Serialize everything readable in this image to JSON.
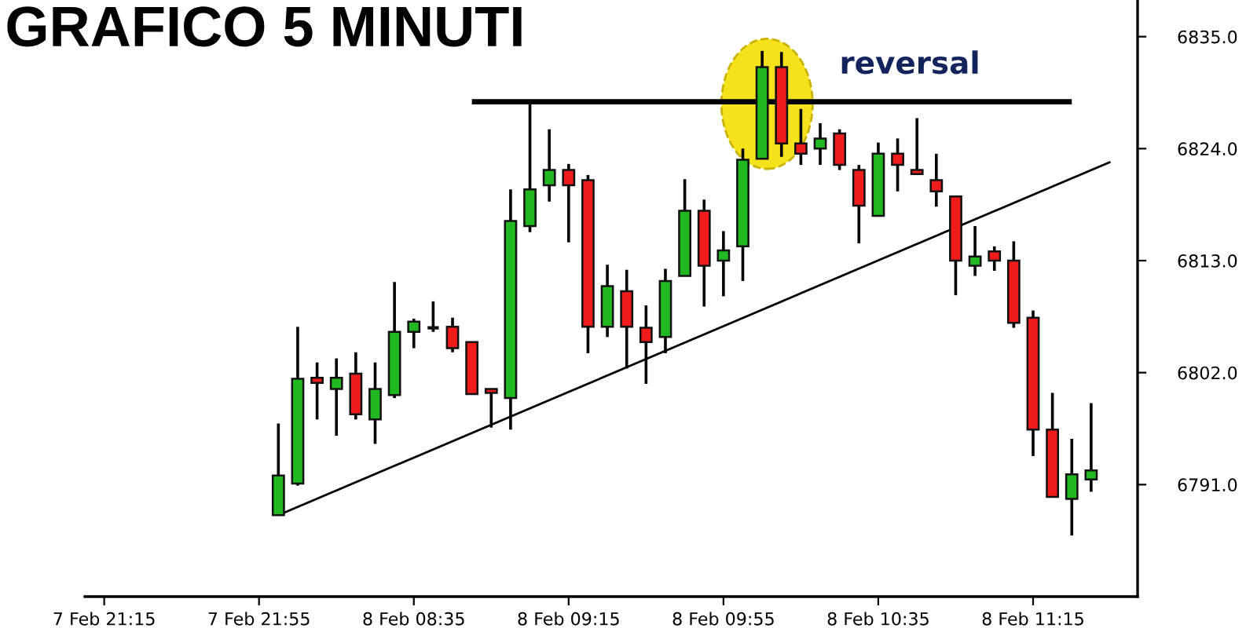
{
  "chart_data": {
    "type": "candlestick",
    "title": "GRAFICO 5 MINUTI",
    "categories": [
      "7 Feb 21:15",
      null,
      null,
      null,
      null,
      null,
      null,
      null,
      "7 Feb 21:55",
      null,
      null,
      null,
      null,
      null,
      null,
      null,
      "8 Feb 08:35",
      null,
      null,
      null,
      null,
      null,
      null,
      null,
      "8 Feb 09:15",
      null,
      null,
      null,
      null,
      null,
      null,
      null,
      "8 Feb 09:55",
      null,
      null,
      null,
      null,
      null,
      null,
      null,
      "8 Feb 10:35",
      null,
      null,
      null,
      null,
      null,
      null,
      null,
      "8 Feb 11:15",
      null,
      null,
      null,
      null
    ],
    "ylim": [
      6780,
      6838.6
    ],
    "yticks": [
      {
        "value": 6791,
        "label": "6791.0"
      },
      {
        "value": 6802,
        "label": "6802.0"
      },
      {
        "value": 6813,
        "label": "6813.0"
      },
      {
        "value": 6824,
        "label": "6824.0"
      },
      {
        "value": 6835,
        "label": "6835.0"
      }
    ],
    "series": [
      {
        "ohlc": [
          null,
          null,
          null,
          null,
          null,
          null,
          null,
          null,
          null,
          [
            6788.0,
            6797.0,
            6788.0,
            6791.9
          ],
          [
            6791.1,
            6806.5,
            6790.9,
            6801.4
          ],
          [
            6801.5,
            6803.0,
            6797.4,
            6801.0
          ],
          [
            6800.4,
            6803.4,
            6795.8,
            6801.5
          ],
          [
            6801.9,
            6804.0,
            6797.4,
            6797.9
          ],
          [
            6797.4,
            6803.0,
            6795.0,
            6800.4
          ],
          [
            6799.8,
            6810.9,
            6799.5,
            6806.0
          ],
          [
            6806.0,
            6807.3,
            6804.4,
            6807.0
          ],
          [
            6806.4,
            6809.0,
            6806.0,
            6806.4
          ],
          [
            6806.5,
            6807.4,
            6804.0,
            6804.4
          ],
          [
            6805.0,
            6805.0,
            6799.9,
            6799.9
          ],
          [
            6800.4,
            6800.4,
            6796.6,
            6800.0
          ],
          [
            6799.5,
            6820.0,
            6796.4,
            6816.9
          ],
          [
            6816.4,
            6828.6,
            6815.8,
            6820.0
          ],
          [
            6820.4,
            6825.9,
            6818.8,
            6821.9
          ],
          [
            6821.9,
            6822.5,
            6814.8,
            6820.4
          ],
          [
            6820.9,
            6821.4,
            6803.9,
            6806.5
          ],
          [
            6806.5,
            6812.6,
            6805.5,
            6810.5
          ],
          [
            6810.0,
            6812.1,
            6802.4,
            6806.5
          ],
          [
            6806.4,
            6808.6,
            6800.9,
            6805.0
          ],
          [
            6805.5,
            6812.2,
            6803.9,
            6811.0
          ],
          [
            6811.5,
            6821.0,
            6811.5,
            6817.9
          ],
          [
            6817.9,
            6819.0,
            6808.5,
            6812.5
          ],
          [
            6813.0,
            6815.9,
            6809.5,
            6814.0
          ],
          [
            6814.4,
            6824.0,
            6811.0,
            6822.9
          ],
          [
            6823.0,
            6833.6,
            6823.0,
            6832.0
          ],
          [
            6832.0,
            6833.5,
            6823.2,
            6824.5
          ],
          [
            6824.5,
            6827.9,
            6822.4,
            6823.5
          ],
          [
            6824.0,
            6826.5,
            6822.4,
            6825.0
          ],
          [
            6825.5,
            6825.9,
            6821.9,
            6822.4
          ],
          [
            6821.9,
            6822.4,
            6814.7,
            6818.4
          ],
          [
            6817.4,
            6824.6,
            6817.4,
            6823.5
          ],
          [
            6823.5,
            6825.0,
            6819.8,
            6822.4
          ],
          [
            6821.9,
            6827.0,
            6821.5,
            6821.5
          ],
          [
            6820.9,
            6823.5,
            6818.3,
            6819.8
          ],
          [
            6819.3,
            6819.3,
            6809.6,
            6813.0
          ],
          [
            6812.5,
            6816.4,
            6811.5,
            6813.4
          ],
          [
            6813.9,
            6814.4,
            6812.0,
            6813.0
          ],
          [
            6813.0,
            6814.9,
            6806.4,
            6806.9
          ],
          [
            6807.4,
            6808.1,
            6793.8,
            6796.4
          ],
          [
            6796.4,
            6800.0,
            6789.8,
            6789.8
          ],
          [
            6789.6,
            6795.5,
            6786.0,
            6792.0
          ],
          [
            6791.5,
            6799.0,
            6790.3,
            6792.4
          ],
          null
        ],
        "colors": [
          null,
          null,
          null,
          null,
          null,
          null,
          null,
          null,
          null,
          "#22b822",
          "#22b822",
          "#f01c1c",
          "#22b822",
          "#f01c1c",
          "#22b822",
          "#22b822",
          "#22b822",
          "#111111",
          "#f01c1c",
          "#f01c1c",
          "#f01c1c",
          "#22b822",
          "#22b822",
          "#22b822",
          "#f01c1c",
          "#f01c1c",
          "#22b822",
          "#f01c1c",
          "#f01c1c",
          "#22b822",
          "#22b822",
          "#f01c1c",
          "#22b822",
          "#22b822",
          "#22b822",
          "#f01c1c",
          "#f01c1c",
          "#22b822",
          "#f01c1c",
          "#f01c1c",
          "#22b822",
          "#f01c1c",
          "#f01c1c",
          "#f01c1c",
          "#f01c1c",
          "#22b822",
          "#f01c1c",
          "#f01c1c",
          "#f01c1c",
          "#f01c1c",
          "#22b822",
          "#22b822",
          null
        ]
      },
      {
        "type": "line",
        "color": "#000000",
        "values": [
          null,
          null,
          null,
          null,
          null,
          null,
          null,
          null,
          null,
          6788.0,
          null,
          null,
          null,
          null,
          null,
          null,
          null,
          null,
          null,
          null,
          null,
          null,
          null,
          null,
          null,
          null,
          null,
          null,
          null,
          null,
          null,
          null,
          null,
          null,
          null,
          null,
          null,
          null,
          null,
          null,
          null,
          null,
          null,
          null,
          null,
          null,
          null,
          null,
          null,
          null,
          null,
          null,
          6822.7
        ]
      },
      {
        "type": "line",
        "name": "reversal",
        "color": "#000000",
        "values": [
          null,
          null,
          null,
          null,
          null,
          null,
          null,
          null,
          null,
          null,
          null,
          null,
          null,
          null,
          null,
          null,
          null,
          null,
          null,
          6828.6,
          null,
          null,
          null,
          null,
          null,
          null,
          null,
          null,
          null,
          null,
          null,
          null,
          null,
          null,
          null,
          null,
          null,
          null,
          null,
          null,
          null,
          null,
          null,
          null,
          null,
          null,
          null,
          null,
          null,
          null,
          6828.6,
          null,
          null
        ]
      }
    ]
  }
}
